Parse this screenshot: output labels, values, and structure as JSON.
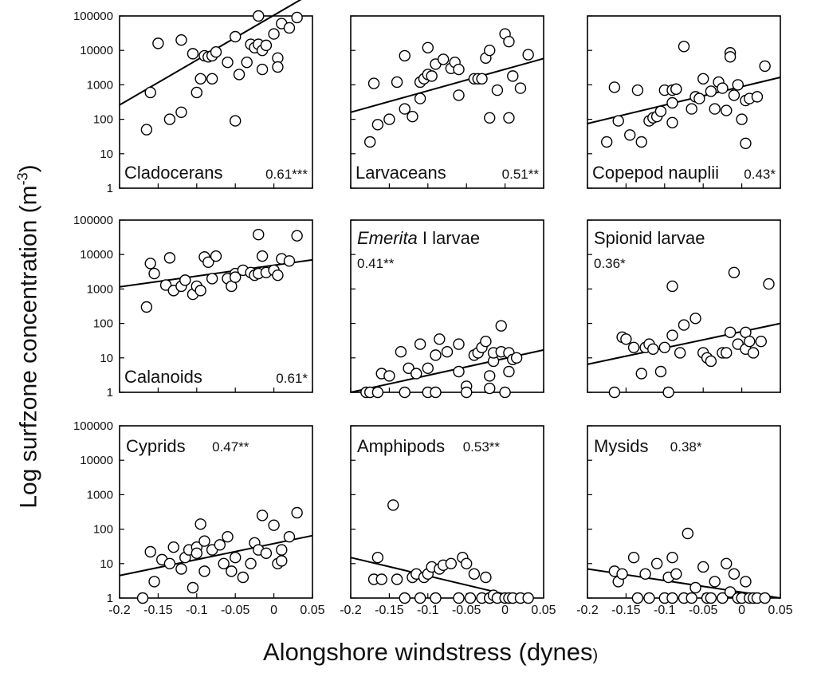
{
  "figure": {
    "ylabel_main": "Log surfzone concentration (m",
    "ylabel_exp": "-3",
    "ylabel_close": ")",
    "xlabel": "Alongshore windstress (dynes",
    "xlabel_close": ")"
  },
  "chart_data": [
    {
      "type": "scatter",
      "label": "Cladocerans",
      "italic_part": "",
      "stat": "0.61***",
      "label_pos": "bottom",
      "ylog": true,
      "xlim": [
        -0.2,
        0.05
      ],
      "ylim": [
        1,
        100000
      ],
      "x": [
        -0.165,
        -0.16,
        -0.15,
        -0.135,
        -0.12,
        -0.12,
        -0.105,
        -0.1,
        -0.095,
        -0.09,
        -0.085,
        -0.08,
        -0.08,
        -0.075,
        -0.06,
        -0.05,
        -0.05,
        -0.045,
        -0.035,
        -0.03,
        -0.025,
        -0.02,
        -0.02,
        -0.015,
        -0.015,
        -0.01,
        0.0,
        0.005,
        0.005,
        0.01,
        0.02,
        0.03
      ],
      "y": [
        50,
        600,
        16000,
        100,
        20000,
        160,
        8000,
        600,
        1500,
        7000,
        6500,
        1500,
        7000,
        9000,
        4500,
        25000,
        90,
        2000,
        4500,
        15000,
        12000,
        100000,
        15000,
        10000,
        2800,
        14000,
        30000,
        6000,
        3300,
        60000,
        45000,
        90000
      ],
      "fit": [
        [
          -0.2,
          260
        ],
        [
          0.05,
          470000
        ]
      ]
    },
    {
      "type": "scatter",
      "label": "Larvaceans",
      "italic_part": "",
      "stat": "0.51**",
      "label_pos": "bottom",
      "ylog": true,
      "xlim": [
        -0.2,
        0.05
      ],
      "ylim": [
        1,
        100000
      ],
      "x": [
        -0.175,
        -0.17,
        -0.165,
        -0.15,
        -0.14,
        -0.13,
        -0.13,
        -0.12,
        -0.11,
        -0.11,
        -0.105,
        -0.1,
        -0.1,
        -0.095,
        -0.09,
        -0.08,
        -0.07,
        -0.065,
        -0.06,
        -0.06,
        -0.04,
        -0.035,
        -0.03,
        -0.025,
        -0.02,
        -0.02,
        -0.01,
        0.0,
        0.005,
        0.005,
        0.01,
        0.02,
        0.03
      ],
      "y": [
        22,
        1100,
        70,
        100,
        1200,
        200,
        7000,
        120,
        400,
        1200,
        1500,
        12000,
        2000,
        1800,
        4000,
        5500,
        3000,
        4500,
        2800,
        500,
        1500,
        1500,
        1500,
        6000,
        110,
        10000,
        700,
        30000,
        18000,
        110,
        1800,
        800,
        7500
      ],
      "fit": [
        [
          -0.2,
          160
        ],
        [
          0.05,
          5800
        ]
      ]
    },
    {
      "type": "scatter",
      "label": "Copepod nauplii",
      "italic_part": "",
      "stat": "0.43*",
      "label_pos": "bottom",
      "ylog": true,
      "xlim": [
        -0.2,
        0.05
      ],
      "ylim": [
        1,
        100000
      ],
      "x": [
        -0.175,
        -0.165,
        -0.16,
        -0.145,
        -0.135,
        -0.13,
        -0.12,
        -0.115,
        -0.11,
        -0.105,
        -0.1,
        -0.09,
        -0.09,
        -0.09,
        -0.085,
        -0.085,
        -0.075,
        -0.065,
        -0.06,
        -0.055,
        -0.05,
        -0.04,
        -0.035,
        -0.03,
        -0.025,
        -0.02,
        -0.015,
        -0.015,
        -0.01,
        -0.005,
        0.0,
        0.005,
        0.005,
        0.01,
        0.02,
        0.03
      ],
      "y": [
        22,
        850,
        90,
        35,
        700,
        22,
        90,
        110,
        120,
        170,
        700,
        80,
        300,
        700,
        750,
        750,
        13000,
        200,
        450,
        400,
        1500,
        650,
        200,
        1200,
        800,
        180,
        8500,
        6500,
        500,
        1000,
        100,
        20,
        350,
        400,
        450,
        3500
      ],
      "fit": [
        [
          -0.2,
          75
        ],
        [
          0.05,
          1650
        ]
      ]
    },
    {
      "type": "scatter",
      "label": "Calanoids",
      "italic_part": "",
      "stat": "0.61*",
      "label_pos": "bottom",
      "ylog": true,
      "xlim": [
        -0.2,
        0.05
      ],
      "ylim": [
        1,
        100000
      ],
      "x": [
        -0.165,
        -0.16,
        -0.155,
        -0.14,
        -0.135,
        -0.13,
        -0.12,
        -0.115,
        -0.105,
        -0.1,
        -0.095,
        -0.09,
        -0.085,
        -0.08,
        -0.075,
        -0.06,
        -0.055,
        -0.05,
        -0.05,
        -0.04,
        -0.03,
        -0.025,
        -0.02,
        -0.02,
        -0.015,
        -0.01,
        0.0,
        0.005,
        0.01,
        0.02,
        0.03
      ],
      "y": [
        300,
        5500,
        2800,
        1300,
        8000,
        900,
        1200,
        1800,
        700,
        1200,
        900,
        8500,
        6000,
        2000,
        9000,
        2000,
        1200,
        2800,
        2200,
        3500,
        3000,
        2500,
        2800,
        38000,
        9000,
        3000,
        3500,
        2500,
        7500,
        6500,
        35000
      ],
      "fit": [
        [
          -0.2,
          1150
        ],
        [
          0.05,
          7000
        ]
      ]
    },
    {
      "type": "scatter",
      "label": "",
      "italic_part": "Emerita",
      "label_rest": " I larvae",
      "stat": "0.41**",
      "label_pos": "top",
      "ylog": true,
      "xlim": [
        -0.2,
        0.05
      ],
      "ylim": [
        1,
        100000
      ],
      "x": [
        -0.18,
        -0.175,
        -0.165,
        -0.16,
        -0.15,
        -0.135,
        -0.13,
        -0.125,
        -0.115,
        -0.11,
        -0.1,
        -0.1,
        -0.09,
        -0.09,
        -0.085,
        -0.075,
        -0.06,
        -0.06,
        -0.05,
        -0.05,
        -0.04,
        -0.035,
        -0.03,
        -0.025,
        -0.02,
        -0.02,
        -0.015,
        -0.015,
        -0.005,
        -0.005,
        0.0,
        0.005,
        0.005,
        0.01,
        0.015
      ],
      "y": [
        1,
        1,
        1,
        3.5,
        3,
        15,
        1,
        5,
        3.5,
        25,
        1,
        5,
        1,
        12,
        35,
        15,
        4,
        25,
        1.5,
        1,
        12,
        14,
        20,
        30,
        3,
        1.3,
        8,
        14,
        15,
        85,
        1,
        14,
        4,
        9,
        10
      ],
      "fit": [
        [
          -0.2,
          1.0
        ],
        [
          0.05,
          17
        ]
      ]
    },
    {
      "type": "scatter",
      "label": "Spionid larvae",
      "italic_part": "",
      "stat": "0.36*",
      "label_pos": "top",
      "ylog": true,
      "xlim": [
        -0.2,
        0.05
      ],
      "ylim": [
        1,
        100000
      ],
      "x": [
        -0.165,
        -0.155,
        -0.15,
        -0.14,
        -0.13,
        -0.125,
        -0.12,
        -0.115,
        -0.105,
        -0.1,
        -0.095,
        -0.09,
        -0.09,
        -0.08,
        -0.075,
        -0.06,
        -0.05,
        -0.045,
        -0.04,
        -0.025,
        -0.02,
        -0.015,
        -0.01,
        -0.005,
        0.005,
        0.005,
        0.01,
        0.015,
        0.025,
        0.035
      ],
      "y": [
        1,
        40,
        35,
        20,
        3.5,
        20,
        25,
        18,
        4,
        20,
        1,
        45,
        1200,
        14,
        90,
        140,
        14,
        10,
        8,
        14,
        14,
        55,
        3000,
        25,
        55,
        18,
        30,
        14,
        30,
        1400
      ],
      "fit": [
        [
          -0.2,
          6.5
        ],
        [
          0.05,
          100
        ]
      ]
    },
    {
      "type": "scatter",
      "label": "Cyprids",
      "italic_part": "",
      "stat": "0.47**",
      "label_pos": "top",
      "ylog": true,
      "xlim": [
        -0.2,
        0.05
      ],
      "ylim": [
        1,
        100000
      ],
      "x": [
        -0.17,
        -0.16,
        -0.155,
        -0.145,
        -0.135,
        -0.13,
        -0.12,
        -0.115,
        -0.11,
        -0.105,
        -0.1,
        -0.1,
        -0.095,
        -0.09,
        -0.09,
        -0.08,
        -0.07,
        -0.065,
        -0.06,
        -0.055,
        -0.05,
        -0.04,
        -0.03,
        -0.025,
        -0.02,
        -0.015,
        -0.01,
        0.0,
        0.005,
        0.01,
        0.01,
        0.02,
        0.03
      ],
      "y": [
        1,
        22,
        3,
        13,
        10,
        30,
        7,
        15,
        25,
        2,
        30,
        20,
        140,
        6,
        45,
        25,
        35,
        10,
        60,
        6,
        15,
        4,
        10,
        40,
        25,
        250,
        20,
        130,
        10,
        25,
        12,
        60,
        300
      ],
      "fit": [
        [
          -0.2,
          4.5
        ],
        [
          0.05,
          65
        ]
      ]
    },
    {
      "type": "scatter",
      "label": "Amphipods",
      "italic_part": "",
      "stat": "0.53**",
      "label_pos": "top",
      "ylog": true,
      "xlim": [
        -0.2,
        0.05
      ],
      "ylim": [
        1,
        100000
      ],
      "x": [
        -0.17,
        -0.165,
        -0.16,
        -0.145,
        -0.14,
        -0.13,
        -0.12,
        -0.115,
        -0.11,
        -0.105,
        -0.1,
        -0.095,
        -0.09,
        -0.085,
        -0.08,
        -0.07,
        -0.06,
        -0.055,
        -0.05,
        -0.045,
        -0.04,
        -0.03,
        -0.025,
        -0.02,
        -0.02,
        -0.015,
        -0.01,
        0.0,
        0.005,
        0.01,
        0.02,
        0.03
      ],
      "y": [
        3.5,
        15,
        3.5,
        500,
        3.5,
        1,
        4,
        5,
        1,
        4,
        5,
        8,
        1,
        7,
        9,
        10,
        1,
        15,
        10,
        1,
        5,
        1,
        4,
        1,
        1,
        1.2,
        1,
        1,
        1,
        1,
        1,
        1
      ],
      "fit": [
        [
          -0.2,
          15
        ],
        [
          0.05,
          0.7
        ]
      ]
    },
    {
      "type": "scatter",
      "label": "Mysids",
      "italic_part": "",
      "stat": "0.38*",
      "label_pos": "top",
      "ylog": true,
      "xlim": [
        -0.2,
        0.05
      ],
      "ylim": [
        1,
        100000
      ],
      "x": [
        -0.165,
        -0.16,
        -0.155,
        -0.14,
        -0.135,
        -0.125,
        -0.12,
        -0.11,
        -0.1,
        -0.095,
        -0.09,
        -0.09,
        -0.085,
        -0.075,
        -0.07,
        -0.065,
        -0.06,
        -0.05,
        -0.045,
        -0.04,
        -0.035,
        -0.025,
        -0.02,
        -0.015,
        -0.01,
        -0.005,
        0.0,
        0.005,
        0.01,
        0.015,
        0.02,
        0.03
      ],
      "y": [
        6,
        3,
        5,
        15,
        1,
        5,
        1,
        10,
        1,
        4,
        1,
        15,
        5,
        1,
        75,
        1,
        2,
        8,
        1,
        1,
        3,
        1,
        10,
        1.5,
        5,
        1,
        1,
        3,
        1,
        1,
        1,
        1
      ],
      "fit": [
        [
          -0.2,
          7
        ],
        [
          0.05,
          1.0
        ]
      ]
    }
  ],
  "axes": {
    "y_ticks": [
      "100000",
      "10000",
      "1000",
      "100",
      "10",
      "1"
    ],
    "x_ticks": [
      "-0.2",
      "-0.15",
      "-0.1",
      "-0.05",
      "0",
      "0.05"
    ]
  }
}
